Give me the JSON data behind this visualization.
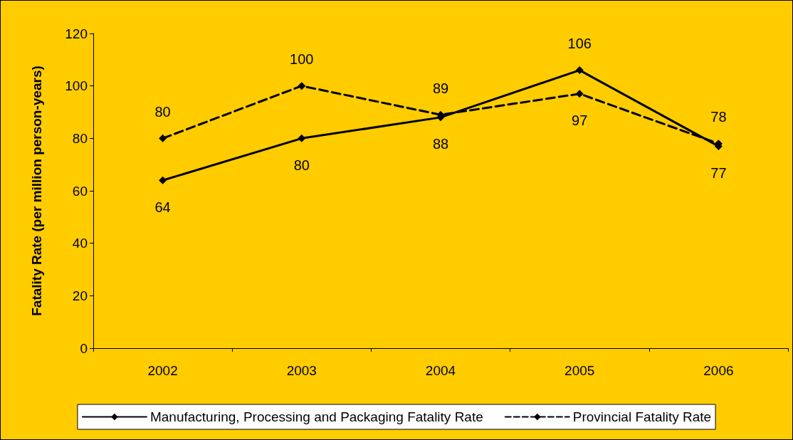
{
  "chart_data": {
    "type": "line",
    "ylabel": "Fatality Rate (per million person-years)",
    "categories": [
      "2002",
      "2003",
      "2004",
      "2005",
      "2006"
    ],
    "series": [
      {
        "name": "Manufacturing, Processing and Packaging Fatality Rate",
        "color": "#000000",
        "line_style": "solid",
        "values": [
          64,
          80,
          88,
          106,
          77
        ]
      },
      {
        "name": "Provincial Fatality Rate",
        "color": "#000000",
        "line_style": "dashed",
        "values": [
          80,
          100,
          89,
          97,
          78
        ]
      }
    ],
    "ylim": [
      0,
      120
    ],
    "yticks": [
      0,
      20,
      40,
      60,
      80,
      100,
      120
    ],
    "grid": false,
    "legend": "bottom",
    "marker": "diamond",
    "data_labels": true
  }
}
